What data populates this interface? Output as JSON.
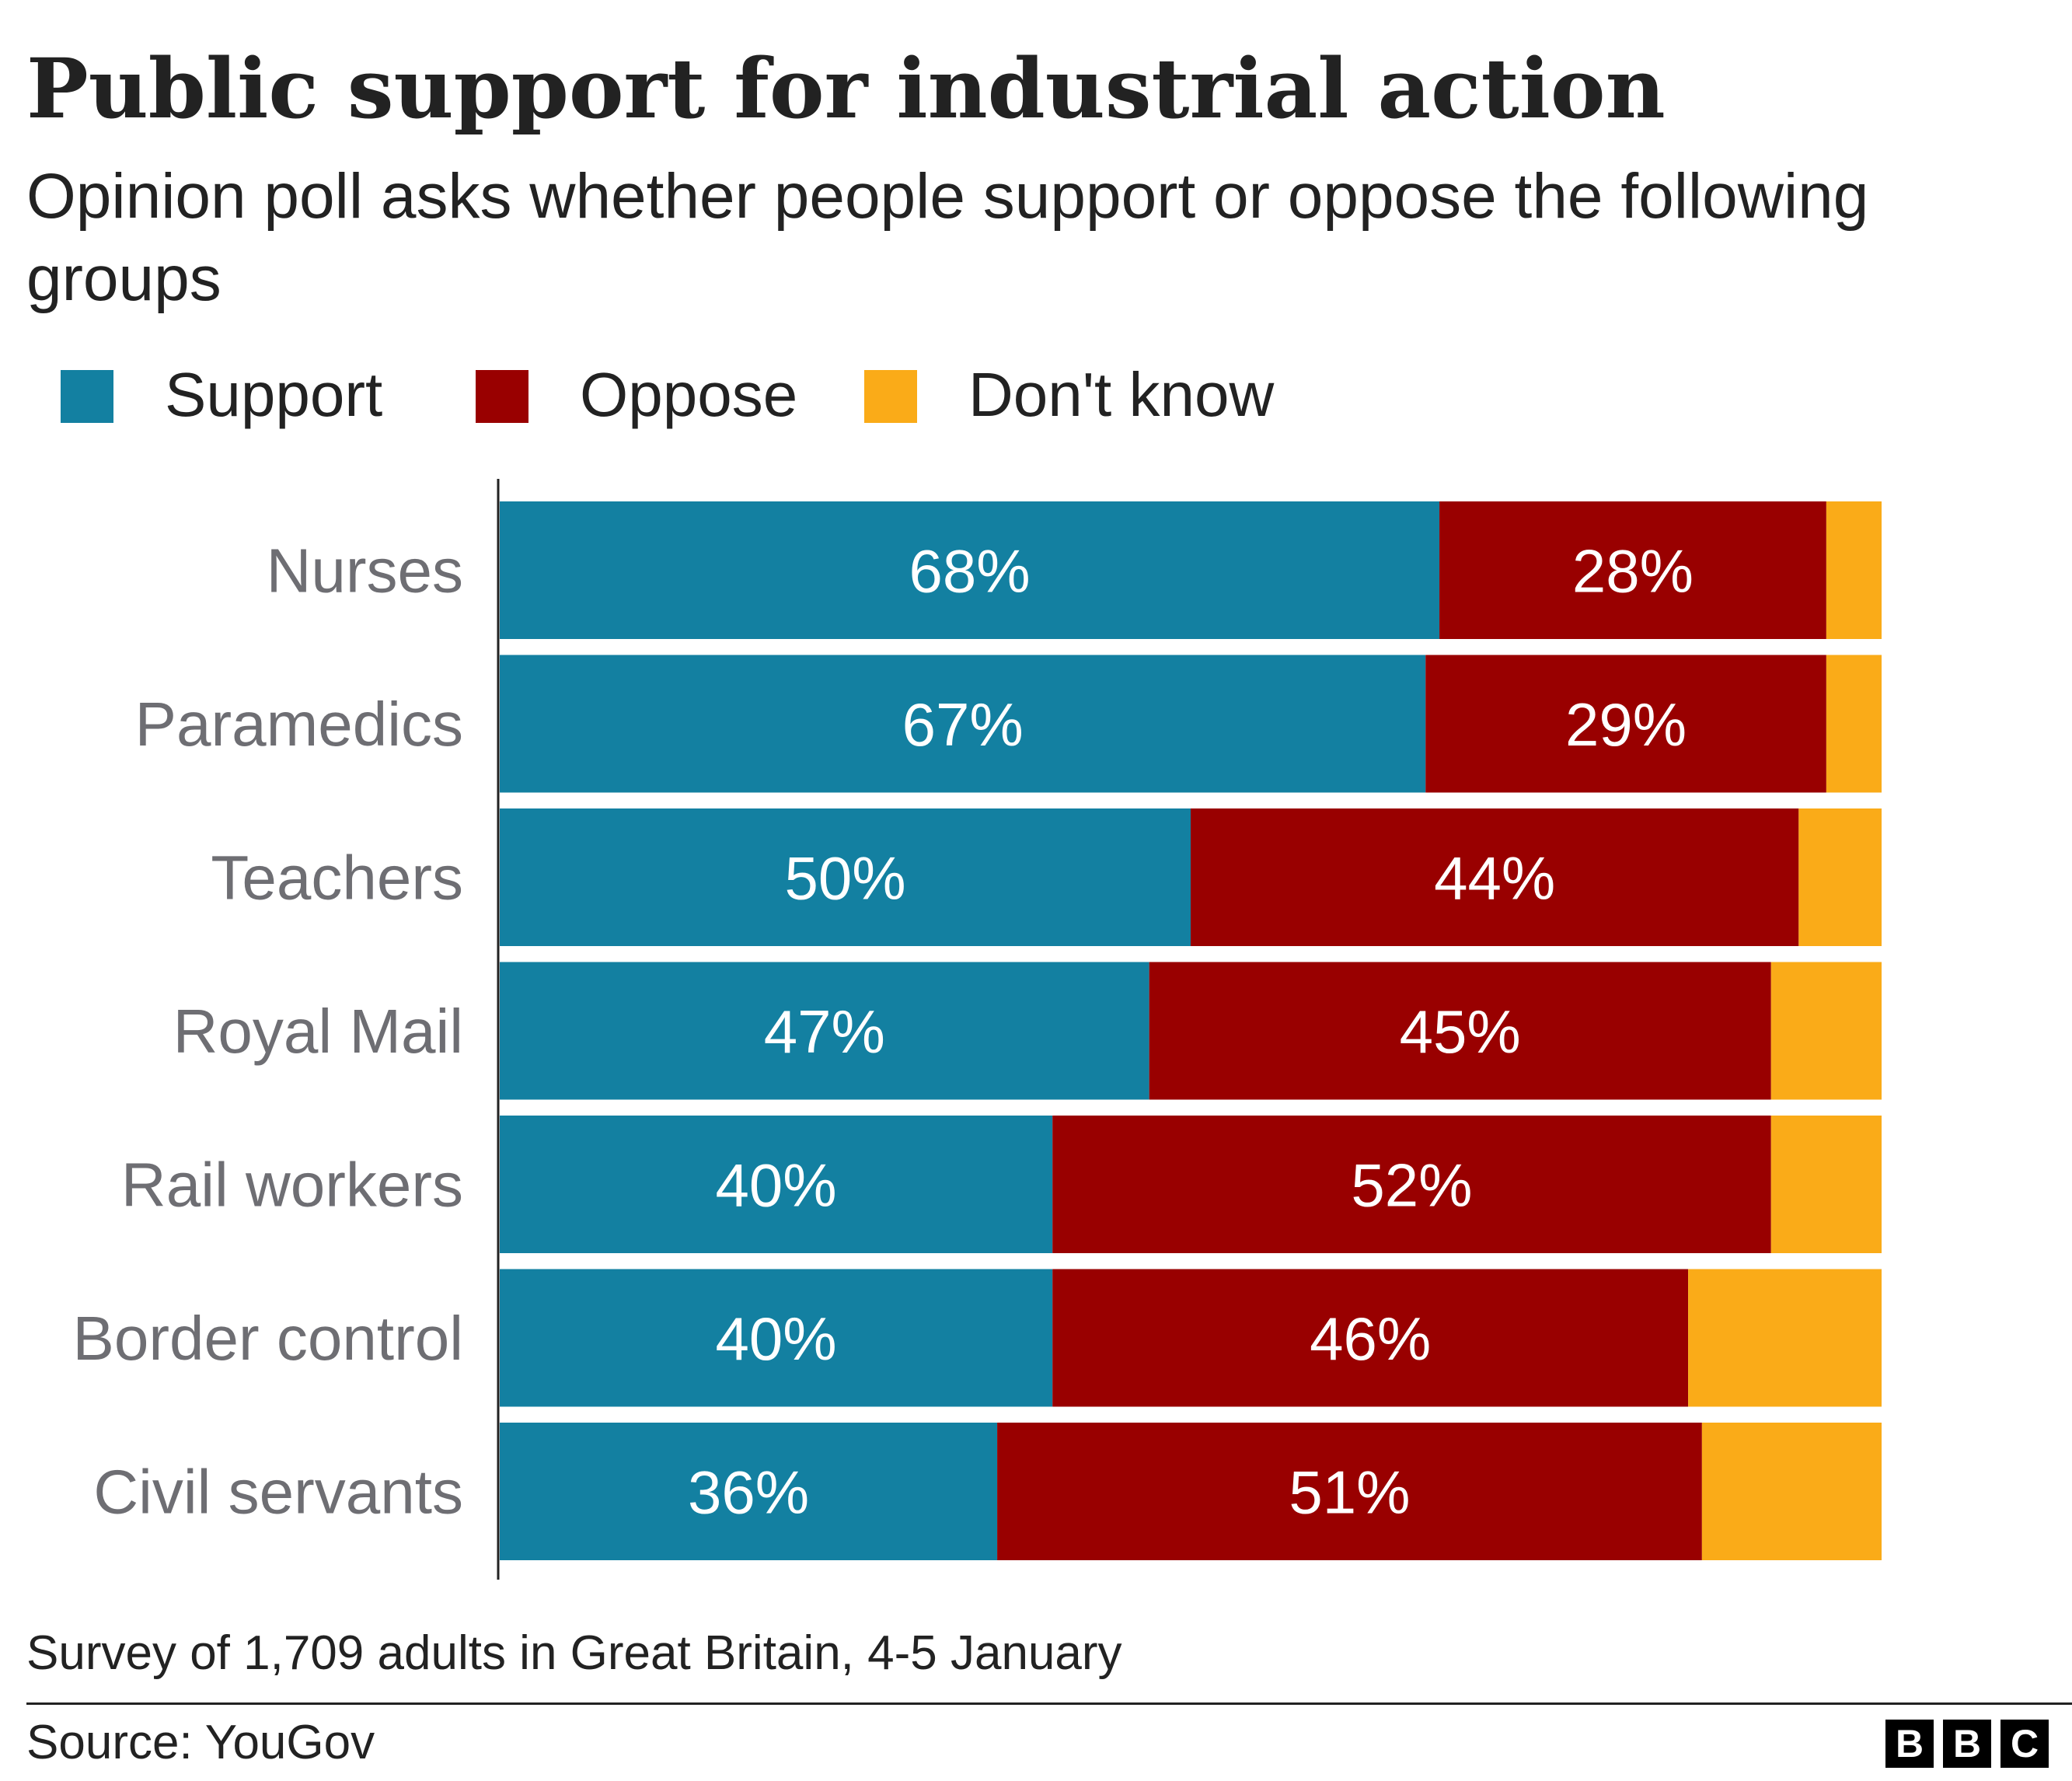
{
  "chart_data": {
    "type": "bar",
    "orientation": "horizontal",
    "stacked": true,
    "title": "Public support for industrial action",
    "subtitle": "Opinion poll asks whether people support or oppose the following groups",
    "categories": [
      "Nurses",
      "Paramedics",
      "Teachers",
      "Royal Mail",
      "Rail workers",
      "Border control",
      "Civil servants"
    ],
    "series": [
      {
        "name": "Support",
        "color": "#1380A1",
        "values": [
          68,
          67,
          50,
          47,
          40,
          40,
          36
        ]
      },
      {
        "name": "Oppose",
        "color": "#990000",
        "values": [
          28,
          29,
          44,
          45,
          52,
          46,
          51
        ]
      },
      {
        "name": "Don't know",
        "color": "#FAAB18",
        "values": [
          4,
          4,
          6,
          8,
          8,
          14,
          13
        ]
      }
    ],
    "value_labels": {
      "Support": [
        "68%",
        "67%",
        "50%",
        "47%",
        "40%",
        "40%",
        "36%"
      ],
      "Oppose": [
        "28%",
        "29%",
        "44%",
        "45%",
        "52%",
        "46%",
        "51%"
      ]
    },
    "xlim": [
      0,
      100
    ],
    "grid": false,
    "legend_position": "top-left"
  },
  "footer": {
    "note": "Survey of 1,709 adults in Great Britain, 4-5 January",
    "source": "Source: YouGov",
    "logo_letters": [
      "B",
      "B",
      "C"
    ]
  }
}
